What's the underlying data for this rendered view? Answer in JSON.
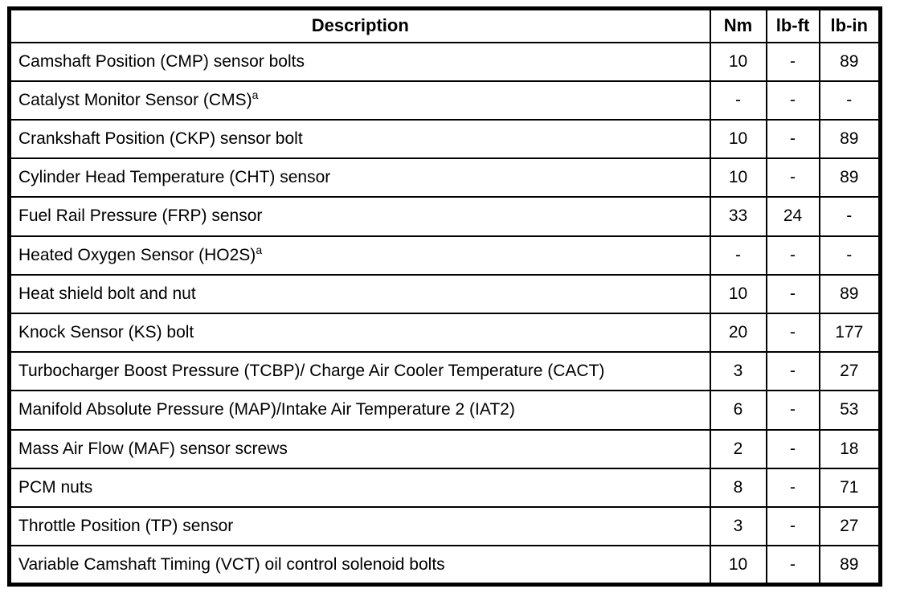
{
  "document": {
    "type": "torque-specifications-table"
  },
  "table": {
    "columns": [
      "Description",
      "Nm",
      "lb-ft",
      "lb-in"
    ],
    "rows": [
      {
        "description": "Camshaft Position (CMP) sensor bolts",
        "footnote": "",
        "nm": "10",
        "lb_ft": "-",
        "lb_in": "89"
      },
      {
        "description": "Catalyst Monitor Sensor (CMS)",
        "footnote": "a",
        "nm": "-",
        "lb_ft": "-",
        "lb_in": "-"
      },
      {
        "description": "Crankshaft Position (CKP) sensor bolt",
        "footnote": "",
        "nm": "10",
        "lb_ft": "-",
        "lb_in": "89"
      },
      {
        "description": "Cylinder Head Temperature (CHT) sensor",
        "footnote": "",
        "nm": "10",
        "lb_ft": "-",
        "lb_in": "89"
      },
      {
        "description": "Fuel Rail Pressure (FRP) sensor",
        "footnote": "",
        "nm": "33",
        "lb_ft": "24",
        "lb_in": "-"
      },
      {
        "description": "Heated Oxygen Sensor (HO2S)",
        "footnote": "a",
        "nm": "-",
        "lb_ft": "-",
        "lb_in": "-"
      },
      {
        "description": "Heat shield bolt and nut",
        "footnote": "",
        "nm": "10",
        "lb_ft": "-",
        "lb_in": "89"
      },
      {
        "description": "Knock Sensor (KS) bolt",
        "footnote": "",
        "nm": "20",
        "lb_ft": "-",
        "lb_in": "177"
      },
      {
        "description": "Turbocharger Boost Pressure (TCBP)/ Charge Air Cooler Temperature (CACT)",
        "footnote": "",
        "nm": "3",
        "lb_ft": "-",
        "lb_in": "27"
      },
      {
        "description": "Manifold Absolute Pressure (MAP)/Intake Air Temperature 2 (IAT2)",
        "footnote": "",
        "nm": "6",
        "lb_ft": "-",
        "lb_in": "53"
      },
      {
        "description": "Mass Air Flow (MAF) sensor screws",
        "footnote": "",
        "nm": "2",
        "lb_ft": "-",
        "lb_in": "18"
      },
      {
        "description": "PCM nuts",
        "footnote": "",
        "nm": "8",
        "lb_ft": "-",
        "lb_in": "71"
      },
      {
        "description": "Throttle Position (TP) sensor",
        "footnote": "",
        "nm": "3",
        "lb_ft": "-",
        "lb_in": "27"
      },
      {
        "description": "Variable Camshaft Timing (VCT) oil control solenoid bolts",
        "footnote": "",
        "nm": "10",
        "lb_ft": "-",
        "lb_in": "89"
      }
    ]
  }
}
